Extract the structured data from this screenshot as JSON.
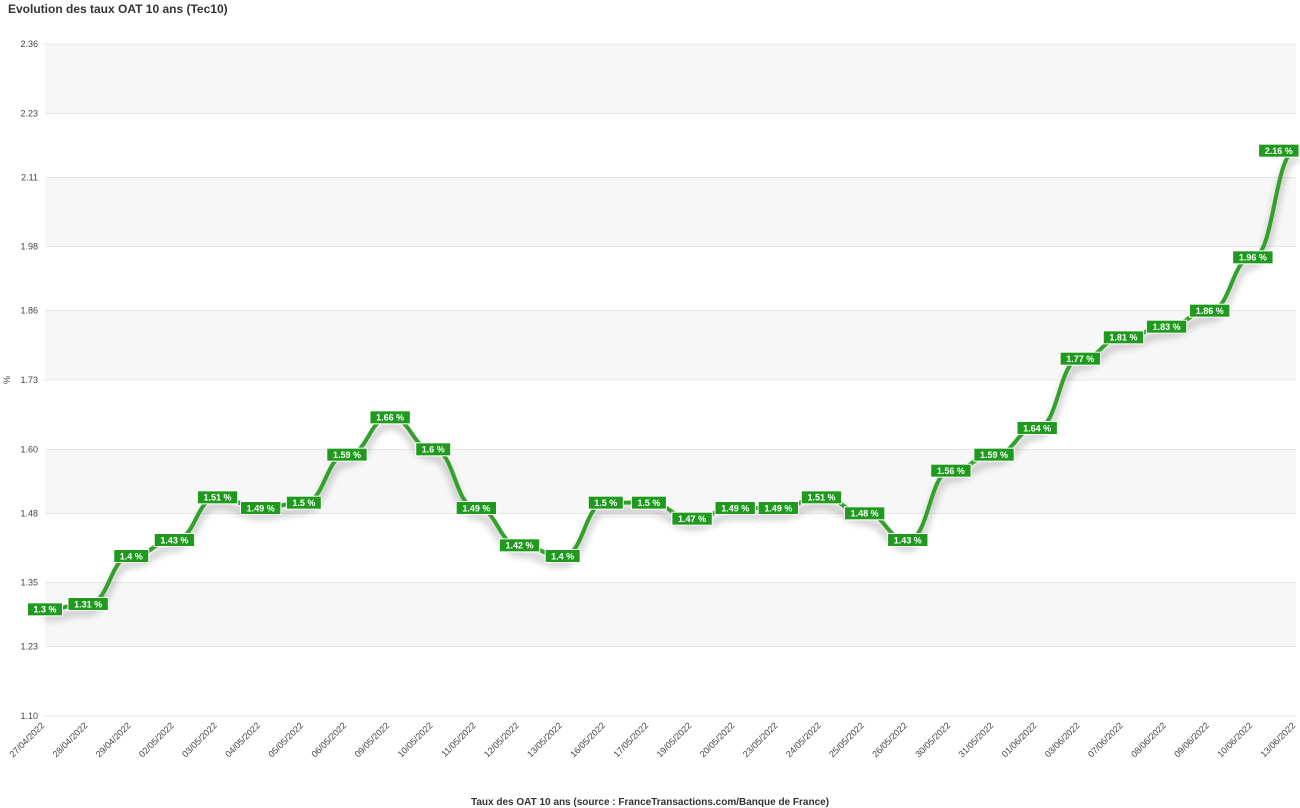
{
  "title": "Evolution des taux OAT 10 ans (Tec10)",
  "footer": "Taux des OAT 10 ans (source : FranceTransactions.com/Banque de France)",
  "colors": {
    "line": "#33a02c",
    "label_bg": "#1f9a1f",
    "band": "#f7f7f7",
    "grid": "#e6e6e6"
  },
  "chart_data": {
    "type": "line",
    "ylabel": "%",
    "ylim": [
      1.1,
      2.36
    ],
    "yticks": [
      "1.10",
      "1.23",
      "1.35",
      "1.48",
      "1.60",
      "1.73",
      "1.86",
      "1.98",
      "2.11",
      "2.23",
      "2.36"
    ],
    "categories": [
      "27/04/2022",
      "28/04/2022",
      "29/04/2022",
      "02/05/2022",
      "03/05/2022",
      "04/05/2022",
      "05/05/2022",
      "06/05/2022",
      "09/05/2022",
      "10/05/2022",
      "11/05/2022",
      "12/05/2022",
      "13/05/2022",
      "16/05/2022",
      "17/05/2022",
      "19/05/2022",
      "20/05/2022",
      "23/05/2022",
      "24/05/2022",
      "25/05/2022",
      "26/05/2022",
      "30/05/2022",
      "31/05/2022",
      "01/06/2022",
      "03/06/2022",
      "07/06/2022",
      "08/06/2022",
      "09/06/2022",
      "10/06/2022",
      "13/06/2022"
    ],
    "values": [
      1.3,
      1.31,
      1.4,
      1.43,
      1.51,
      1.49,
      1.5,
      1.59,
      1.66,
      1.6,
      1.49,
      1.42,
      1.4,
      1.5,
      1.5,
      1.47,
      1.49,
      1.49,
      1.51,
      1.48,
      1.43,
      1.56,
      1.59,
      1.64,
      1.77,
      1.81,
      1.83,
      1.86,
      1.96,
      2.16
    ],
    "labels": [
      "1.3 %",
      "1.31 %",
      "1.4 %",
      "1.43 %",
      "1.51 %",
      "1.49 %",
      "1.5 %",
      "1.59 %",
      "1.66 %",
      "1.6 %",
      "1.49 %",
      "1.42 %",
      "1.4 %",
      "1.5 %",
      "1.5 %",
      "1.47 %",
      "1.49 %",
      "1.49 %",
      "1.51 %",
      "1.48 %",
      "1.43 %",
      "1.56 %",
      "1.59 %",
      "1.64 %",
      "1.77 %",
      "1.81 %",
      "1.83 %",
      "1.86 %",
      "1.96 %",
      "2.16 %"
    ],
    "grid": true,
    "legend": "none"
  }
}
